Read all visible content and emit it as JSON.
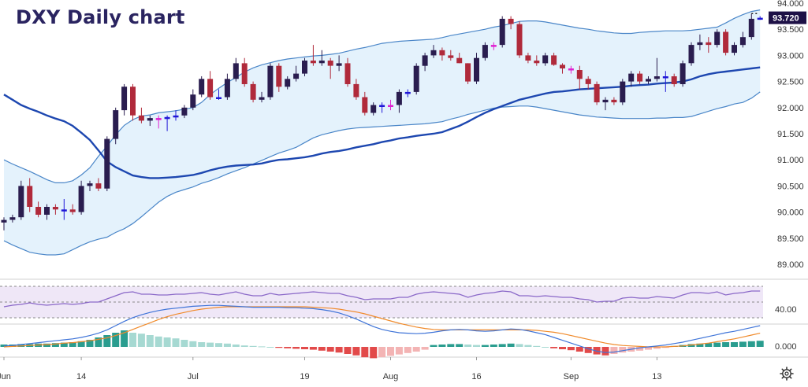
{
  "chart_data": {
    "type": "candlestick",
    "title": "DXY Daily chart",
    "last_price_label": "93.720",
    "price_axis": {
      "ticks": [
        "89.000",
        "89.500",
        "90.000",
        "90.500",
        "91.000",
        "91.500",
        "92.000",
        "92.500",
        "93.000",
        "93.500",
        "94.000"
      ],
      "ylim": [
        88.7,
        94.05
      ]
    },
    "x_ticks": [
      "Jun",
      "14",
      "Jul",
      "19",
      "Aug",
      "16",
      "Sep",
      "13"
    ],
    "candles": [
      [
        89.8,
        89.9,
        89.65,
        89.85
      ],
      [
        89.85,
        89.95,
        89.8,
        89.9
      ],
      [
        89.9,
        90.6,
        89.85,
        90.5
      ],
      [
        90.5,
        90.65,
        90.0,
        90.1
      ],
      [
        90.1,
        90.2,
        89.9,
        89.95
      ],
      [
        89.95,
        90.15,
        89.85,
        90.1
      ],
      [
        90.1,
        90.15,
        89.95,
        90.05
      ],
      [
        90.05,
        90.25,
        89.85,
        90.05
      ],
      [
        90.05,
        90.15,
        89.95,
        90.0
      ],
      [
        90.0,
        90.6,
        89.95,
        90.5
      ],
      [
        90.5,
        90.6,
        90.4,
        90.55
      ],
      [
        90.55,
        90.65,
        90.4,
        90.45
      ],
      [
        90.45,
        91.45,
        90.4,
        91.4
      ],
      [
        91.4,
        92.0,
        91.3,
        91.95
      ],
      [
        91.95,
        92.45,
        91.85,
        92.4
      ],
      [
        92.4,
        92.45,
        91.75,
        91.85
      ],
      [
        91.85,
        92.0,
        91.7,
        91.75
      ],
      [
        91.75,
        91.85,
        91.65,
        91.8
      ],
      [
        91.8,
        91.85,
        91.6,
        91.8
      ],
      [
        91.8,
        91.85,
        91.55,
        91.82
      ],
      [
        91.82,
        91.95,
        91.75,
        91.85
      ],
      [
        91.85,
        92.05,
        91.8,
        92.0
      ],
      [
        92.0,
        92.35,
        91.95,
        92.25
      ],
      [
        92.25,
        92.6,
        92.2,
        92.55
      ],
      [
        92.55,
        92.7,
        92.15,
        92.2
      ],
      [
        92.2,
        92.35,
        92.15,
        92.2
      ],
      [
        92.2,
        92.65,
        92.15,
        92.55
      ],
      [
        92.55,
        92.95,
        92.5,
        92.85
      ],
      [
        92.85,
        92.95,
        92.4,
        92.45
      ],
      [
        92.45,
        92.5,
        92.1,
        92.15
      ],
      [
        92.15,
        92.3,
        92.1,
        92.2
      ],
      [
        92.2,
        92.85,
        92.15,
        92.8
      ],
      [
        92.8,
        92.85,
        92.3,
        92.4
      ],
      [
        92.4,
        92.6,
        92.35,
        92.55
      ],
      [
        92.55,
        92.8,
        92.5,
        92.65
      ],
      [
        92.65,
        92.95,
        92.6,
        92.9
      ],
      [
        92.9,
        93.2,
        92.8,
        92.85
      ],
      [
        92.85,
        93.1,
        92.8,
        92.9
      ],
      [
        92.9,
        92.95,
        92.55,
        92.8
      ],
      [
        92.8,
        93.0,
        92.7,
        92.85
      ],
      [
        92.85,
        92.95,
        92.4,
        92.45
      ],
      [
        92.45,
        92.55,
        92.15,
        92.2
      ],
      [
        92.2,
        92.3,
        91.85,
        91.9
      ],
      [
        91.9,
        92.1,
        91.85,
        92.05
      ],
      [
        92.05,
        92.1,
        91.9,
        92.05
      ],
      [
        92.05,
        92.15,
        91.95,
        92.05
      ],
      [
        92.05,
        92.35,
        91.9,
        92.3
      ],
      [
        92.3,
        92.35,
        92.2,
        92.3
      ],
      [
        92.3,
        92.85,
        92.25,
        92.8
      ],
      [
        92.8,
        93.05,
        92.7,
        93.0
      ],
      [
        93.0,
        93.2,
        92.95,
        93.1
      ],
      [
        93.1,
        93.15,
        92.9,
        93.0
      ],
      [
        93.0,
        93.1,
        92.9,
        92.95
      ],
      [
        92.95,
        93.05,
        92.85,
        92.85
      ],
      [
        92.85,
        92.85,
        92.45,
        92.5
      ],
      [
        92.5,
        93.05,
        92.45,
        92.95
      ],
      [
        92.95,
        93.25,
        92.9,
        93.2
      ],
      [
        93.2,
        93.25,
        93.1,
        93.2
      ],
      [
        93.2,
        93.75,
        93.15,
        93.7
      ],
      [
        93.7,
        93.75,
        93.5,
        93.6
      ],
      [
        93.6,
        93.65,
        92.95,
        93.0
      ],
      [
        93.0,
        93.05,
        92.85,
        92.9
      ],
      [
        92.9,
        93.0,
        92.8,
        92.85
      ],
      [
        92.85,
        93.05,
        92.8,
        93.0
      ],
      [
        93.0,
        93.05,
        92.8,
        92.82
      ],
      [
        92.82,
        92.85,
        92.65,
        92.75
      ],
      [
        92.75,
        92.8,
        92.65,
        92.72
      ],
      [
        92.72,
        92.8,
        92.35,
        92.55
      ],
      [
        92.55,
        92.6,
        92.35,
        92.45
      ],
      [
        92.45,
        92.5,
        92.05,
        92.1
      ],
      [
        92.1,
        92.2,
        91.95,
        92.15
      ],
      [
        92.15,
        92.2,
        92.05,
        92.1
      ],
      [
        92.1,
        92.55,
        92.05,
        92.5
      ],
      [
        92.5,
        92.7,
        92.4,
        92.65
      ],
      [
        92.65,
        92.7,
        92.45,
        92.5
      ],
      [
        92.5,
        92.6,
        92.45,
        92.55
      ],
      [
        92.55,
        92.95,
        92.5,
        92.6
      ],
      [
        92.6,
        92.7,
        92.3,
        92.6
      ],
      [
        92.6,
        92.65,
        92.4,
        92.45
      ],
      [
        92.45,
        92.9,
        92.4,
        92.85
      ],
      [
        92.85,
        93.25,
        92.8,
        93.2
      ],
      [
        93.2,
        93.4,
        93.1,
        93.25
      ],
      [
        93.25,
        93.35,
        93.05,
        93.2
      ],
      [
        93.2,
        93.5,
        93.15,
        93.45
      ],
      [
        93.45,
        93.5,
        93.0,
        93.05
      ],
      [
        93.05,
        93.25,
        93.0,
        93.2
      ],
      [
        93.2,
        93.45,
        93.15,
        93.35
      ],
      [
        93.35,
        93.8,
        93.3,
        93.7
      ],
      [
        93.7,
        93.75,
        93.68,
        93.72
      ]
    ],
    "sma": [
      92.25,
      92.15,
      92.05,
      91.98,
      91.92,
      91.85,
      91.79,
      91.74,
      91.65,
      91.52,
      91.38,
      91.18,
      90.97,
      90.86,
      90.78,
      90.7,
      90.67,
      90.65,
      90.65,
      90.66,
      90.67,
      90.69,
      90.71,
      90.75,
      90.8,
      90.84,
      90.87,
      90.89,
      90.9,
      90.91,
      90.93,
      90.97,
      91.0,
      91.01,
      91.03,
      91.05,
      91.08,
      91.12,
      91.15,
      91.17,
      91.2,
      91.24,
      91.27,
      91.3,
      91.34,
      91.37,
      91.41,
      91.43,
      91.46,
      91.48,
      91.5,
      91.53,
      91.59,
      91.65,
      91.73,
      91.82,
      91.9,
      91.97,
      92.03,
      92.09,
      92.15,
      92.19,
      92.23,
      92.27,
      92.3,
      92.31,
      92.33,
      92.35,
      92.36,
      92.37,
      92.38,
      92.39,
      92.4,
      92.42,
      92.43,
      92.44,
      92.46,
      92.47,
      92.48,
      92.5,
      92.54,
      92.6,
      92.64,
      92.67,
      92.69,
      92.71,
      92.73,
      92.75,
      92.77
    ],
    "bb_upper": [
      91.0,
      90.92,
      90.85,
      90.78,
      90.7,
      90.62,
      90.56,
      90.56,
      90.6,
      90.71,
      90.85,
      91.07,
      91.26,
      91.48,
      91.66,
      91.77,
      91.84,
      91.86,
      91.9,
      91.92,
      91.94,
      91.97,
      92.0,
      92.1,
      92.25,
      92.37,
      92.48,
      92.58,
      92.68,
      92.76,
      92.82,
      92.86,
      92.9,
      92.93,
      92.95,
      92.97,
      92.99,
      93.0,
      93.02,
      93.04,
      93.08,
      93.12,
      93.15,
      93.19,
      93.23,
      93.25,
      93.27,
      93.28,
      93.29,
      93.3,
      93.31,
      93.34,
      93.38,
      93.41,
      93.44,
      93.47,
      93.5,
      93.54,
      93.57,
      93.61,
      93.65,
      93.66,
      93.66,
      93.64,
      93.61,
      93.58,
      93.55,
      93.52,
      93.5,
      93.47,
      93.45,
      93.43,
      93.42,
      93.42,
      93.44,
      93.45,
      93.46,
      93.47,
      93.47,
      93.47,
      93.48,
      93.5,
      93.52,
      93.54,
      93.62,
      93.71,
      93.78,
      93.84,
      93.87
    ],
    "bb_lower": [
      89.45,
      89.37,
      89.3,
      89.23,
      89.2,
      89.18,
      89.18,
      89.2,
      89.28,
      89.36,
      89.43,
      89.48,
      89.52,
      89.61,
      89.68,
      89.78,
      89.91,
      90.05,
      90.19,
      90.3,
      90.38,
      90.43,
      90.48,
      90.55,
      90.6,
      90.66,
      90.73,
      90.79,
      90.85,
      90.92,
      90.99,
      91.06,
      91.13,
      91.18,
      91.24,
      91.33,
      91.42,
      91.48,
      91.52,
      91.56,
      91.59,
      91.61,
      91.62,
      91.63,
      91.64,
      91.65,
      91.66,
      91.67,
      91.68,
      91.69,
      91.71,
      91.73,
      91.78,
      91.82,
      91.87,
      91.91,
      91.95,
      91.99,
      92.01,
      92.02,
      92.03,
      92.03,
      92.01,
      91.98,
      91.95,
      91.92,
      91.89,
      91.86,
      91.84,
      91.82,
      91.81,
      91.8,
      91.79,
      91.79,
      91.79,
      91.79,
      91.8,
      91.8,
      91.81,
      91.81,
      91.83,
      91.88,
      91.93,
      91.98,
      92.02,
      92.07,
      92.1,
      92.18,
      92.3
    ],
    "rsi": {
      "levels": [
        "40.00"
      ],
      "values": [
        44,
        46,
        47,
        49,
        47,
        46,
        47,
        48,
        47,
        48,
        50,
        50,
        54,
        58,
        62,
        63,
        60,
        60,
        59,
        59,
        60,
        60,
        61,
        62,
        60,
        59,
        61,
        63,
        60,
        58,
        58,
        61,
        59,
        60,
        61,
        62,
        63,
        62,
        61,
        61,
        58,
        56,
        53,
        54,
        54,
        54,
        56,
        56,
        60,
        62,
        63,
        62,
        61,
        60,
        56,
        59,
        61,
        62,
        64,
        63,
        58,
        58,
        57,
        58,
        57,
        56,
        56,
        54,
        53,
        50,
        51,
        51,
        55,
        56,
        55,
        55,
        57,
        56,
        55,
        59,
        62,
        62,
        61,
        63,
        59,
        61,
        62,
        64,
        64
      ]
    },
    "macd": {
      "levels": [
        "0.000"
      ],
      "histogram": [
        0.05,
        0.05,
        0.06,
        0.06,
        0.07,
        0.07,
        0.08,
        0.09,
        0.1,
        0.12,
        0.15,
        0.2,
        0.25,
        0.3,
        0.35,
        0.3,
        0.28,
        0.25,
        0.22,
        0.2,
        0.18,
        0.15,
        0.12,
        0.1,
        0.09,
        0.08,
        0.07,
        0.05,
        0.03,
        0.02,
        0.01,
        0.0,
        -0.02,
        -0.03,
        -0.04,
        -0.05,
        -0.06,
        -0.08,
        -0.1,
        -0.12,
        -0.15,
        -0.18,
        -0.22,
        -0.24,
        -0.22,
        -0.19,
        -0.16,
        -0.13,
        -0.1,
        -0.06,
        0.04,
        0.05,
        0.06,
        0.06,
        0.05,
        0.04,
        0.04,
        0.05,
        0.06,
        0.07,
        0.06,
        0.04,
        0.02,
        0.0,
        -0.03,
        -0.05,
        -0.07,
        -0.1,
        -0.13,
        -0.16,
        -0.18,
        -0.15,
        -0.12,
        -0.1,
        -0.08,
        -0.06,
        -0.04,
        -0.02,
        0.02,
        0.04,
        0.06,
        0.07,
        0.08,
        0.09,
        0.1,
        0.1,
        0.11,
        0.12,
        0.13
      ],
      "macd_line": [
        0.02,
        0.03,
        0.05,
        0.07,
        0.09,
        0.11,
        0.13,
        0.15,
        0.17,
        0.2,
        0.24,
        0.29,
        0.36,
        0.45,
        0.54,
        0.62,
        0.68,
        0.73,
        0.77,
        0.8,
        0.82,
        0.84,
        0.86,
        0.87,
        0.88,
        0.88,
        0.87,
        0.86,
        0.85,
        0.84,
        0.84,
        0.84,
        0.84,
        0.83,
        0.83,
        0.82,
        0.81,
        0.79,
        0.76,
        0.72,
        0.66,
        0.59,
        0.51,
        0.43,
        0.37,
        0.33,
        0.3,
        0.29,
        0.28,
        0.29,
        0.31,
        0.34,
        0.36,
        0.37,
        0.36,
        0.34,
        0.33,
        0.34,
        0.36,
        0.38,
        0.37,
        0.34,
        0.3,
        0.26,
        0.2,
        0.14,
        0.08,
        0.02,
        -0.04,
        -0.09,
        -0.12,
        -0.11,
        -0.08,
        -0.05,
        -0.02,
        0.0,
        0.02,
        0.04,
        0.07,
        0.1,
        0.14,
        0.18,
        0.22,
        0.26,
        0.3,
        0.33,
        0.37,
        0.41,
        0.45
      ],
      "signal": [
        0.0,
        0.01,
        0.02,
        0.03,
        0.04,
        0.05,
        0.06,
        0.08,
        0.09,
        0.11,
        0.13,
        0.16,
        0.19,
        0.24,
        0.3,
        0.37,
        0.44,
        0.51,
        0.58,
        0.64,
        0.69,
        0.73,
        0.77,
        0.8,
        0.82,
        0.84,
        0.85,
        0.85,
        0.85,
        0.85,
        0.85,
        0.85,
        0.85,
        0.85,
        0.85,
        0.85,
        0.84,
        0.83,
        0.82,
        0.8,
        0.77,
        0.74,
        0.7,
        0.65,
        0.6,
        0.55,
        0.5,
        0.46,
        0.42,
        0.39,
        0.37,
        0.36,
        0.36,
        0.36,
        0.36,
        0.36,
        0.36,
        0.36,
        0.36,
        0.36,
        0.36,
        0.36,
        0.35,
        0.33,
        0.31,
        0.28,
        0.24,
        0.2,
        0.16,
        0.12,
        0.08,
        0.05,
        0.03,
        0.02,
        0.01,
        0.0,
        0.0,
        0.0,
        0.01,
        0.02,
        0.04,
        0.06,
        0.08,
        0.11,
        0.14,
        0.17,
        0.21,
        0.25,
        0.29
      ]
    },
    "colors": {
      "bull": "#2a1d4f",
      "bear": "#b02a3b",
      "doji": "#1f16d8",
      "highlight": "#e020d0",
      "sma": "#1d47b0",
      "band": "#4a86c8",
      "band_fill": "#dff0fb",
      "rsi_line": "#8a68c8",
      "rsi_fill": "#efe7f7",
      "macd_pos": "#2a9d8f",
      "macd_pos_light": "#a6d9d2",
      "macd_neg": "#e24a4a",
      "macd_neg_light": "#f3b4b4",
      "macd_line": "#3f74d8",
      "signal_line": "#f08a2a",
      "label_bg": "#1d1046",
      "title": "#2a2460"
    },
    "grid": false,
    "legend": "none"
  }
}
